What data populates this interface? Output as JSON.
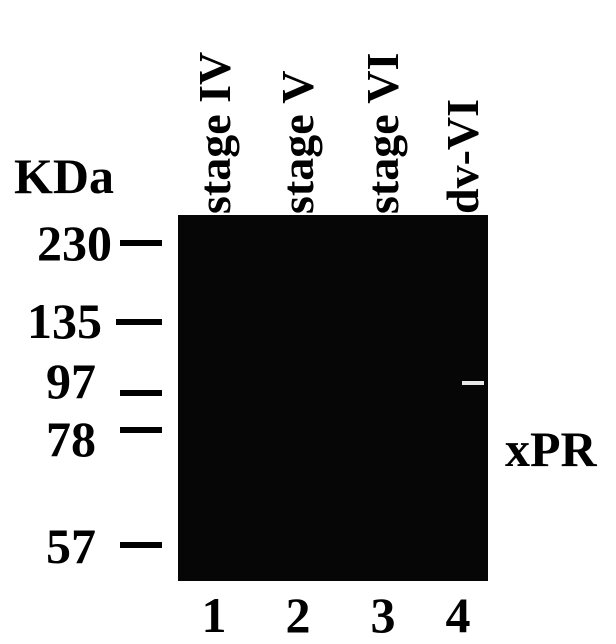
{
  "unit_label": "KDa",
  "markers": [
    230,
    135,
    97,
    78,
    57
  ],
  "lanes": [
    {
      "label": "stage IV",
      "number": "1"
    },
    {
      "label": "stage V",
      "number": "2"
    },
    {
      "label": "stage VI",
      "number": "3"
    },
    {
      "label": "dv-VI",
      "number": "4"
    }
  ],
  "band_label": "xPR"
}
